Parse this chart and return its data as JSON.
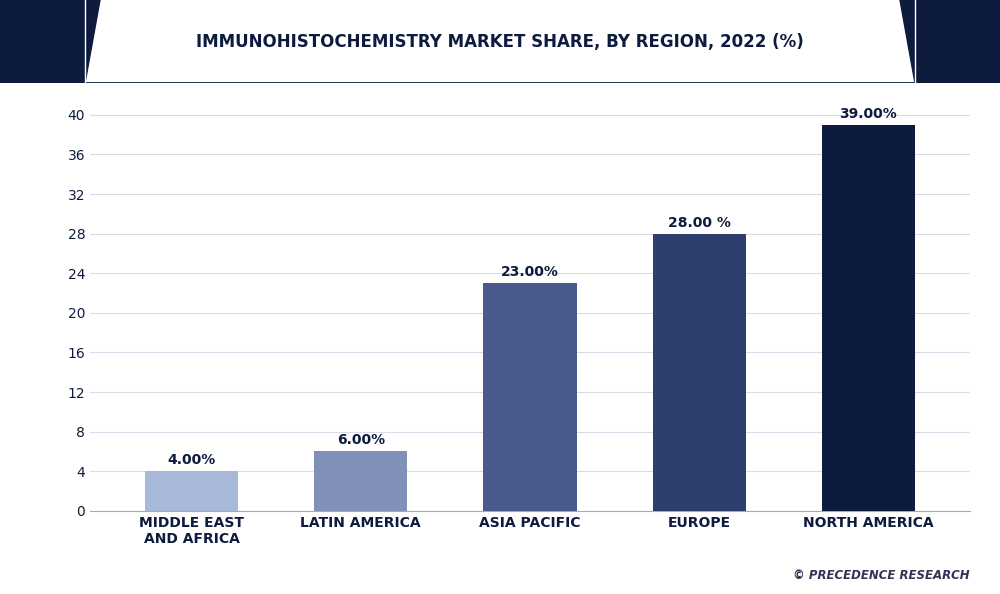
{
  "title": "IMMUNOHISTOCHEMISTRY MARKET SHARE, BY REGION, 2022 (%)",
  "categories": [
    "MIDDLE EAST\nAND AFRICA",
    "LATIN AMERICA",
    "ASIA PACIFIC",
    "EUROPE",
    "NORTH AMERICA"
  ],
  "values": [
    4.0,
    6.0,
    23.0,
    28.0,
    39.0
  ],
  "bar_colors": [
    "#a8b8d8",
    "#8090b8",
    "#4a5a8c",
    "#2e3f6e",
    "#0d1b3e"
  ],
  "labels": [
    "4.00%",
    "6.00%",
    "23.00%",
    "28.00 %",
    "39.00%"
  ],
  "ylim": [
    0,
    42
  ],
  "yticks": [
    0,
    4,
    8,
    12,
    16,
    20,
    24,
    28,
    32,
    36,
    40
  ],
  "background_color": "#ffffff",
  "plot_bg_color": "#ffffff",
  "title_color": "#0d1b3e",
  "label_color": "#0d1b3e",
  "axis_label_color": "#0d1b3e",
  "grid_color": "#d8dce8",
  "title_fontsize": 12,
  "label_fontsize": 10,
  "tick_fontsize": 10,
  "watermark": "© PRECEDENCE RESEARCH",
  "header_accent_color": "#0d1b3e",
  "header_bg_color": "#ffffff",
  "bar_width": 0.55
}
